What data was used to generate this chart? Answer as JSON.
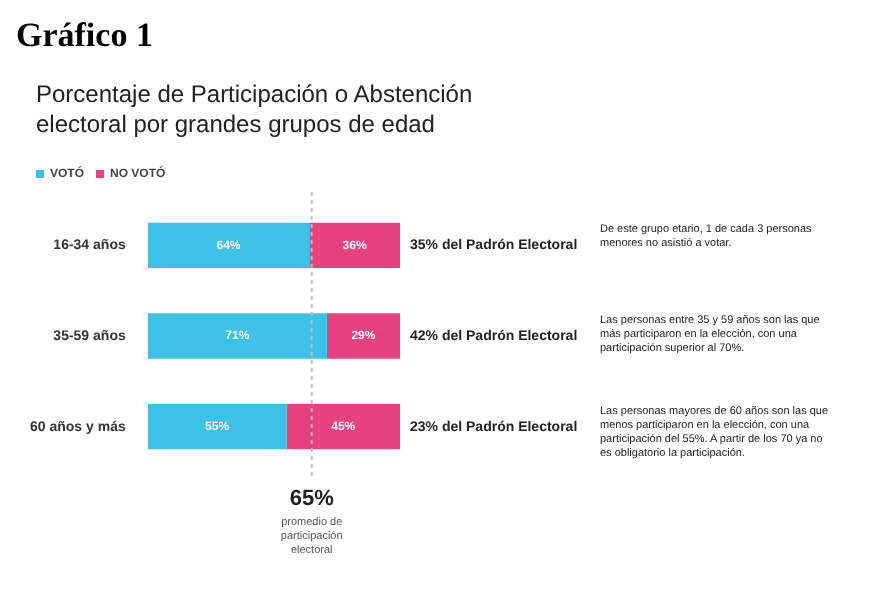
{
  "chart_data": {
    "type": "bar",
    "title": "Gráfico 1",
    "subtitle": "Porcentaje de Participación o Abstención electoral por grandes grupos de edad",
    "orientation": "horizontal",
    "stacked": true,
    "categories": [
      "16-34 años",
      "35-59 años",
      "60 años y más"
    ],
    "series": [
      {
        "name": "VOTÓ",
        "color": "#3ec1e6",
        "values": [
          64,
          71,
          55
        ],
        "value_labels": [
          "64%",
          "71%",
          "55%"
        ]
      },
      {
        "name": "NO VOTÓ",
        "color": "#e8417f",
        "values": [
          36,
          29,
          45
        ],
        "value_labels": [
          "36%",
          "29%",
          "45%"
        ]
      }
    ],
    "xlim": [
      0,
      100
    ],
    "tick_labels": "y",
    "legend": "top",
    "grid": false,
    "ref_lines": [
      {
        "axis": "x",
        "value": 65,
        "label": "65% promedio de participación electoral",
        "color": "#bbbbbb",
        "line_style": "dotted"
      }
    ],
    "annotations": [
      "35% del Padrón Electoral",
      "De este grupo etario, 1 de cada 3 personas menores no asistió a votar.",
      "42% del Padrón Electoral",
      "Las personas entre 35 y 59 años son las que más participaron en la elección, con una participación superior al 70%.",
      "23% del Padrón Electoral",
      "Las personas mayores de 60 años son las que menos participaron en la elección, con una participación del 55%. A partir de los 70 ya no es obligatorio la participación."
    ]
  }
}
